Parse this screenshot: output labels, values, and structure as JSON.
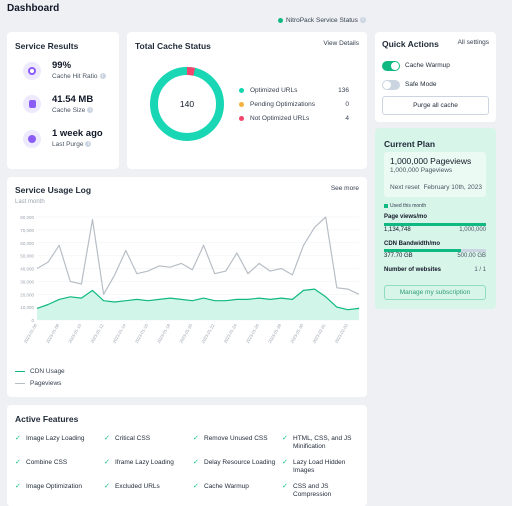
{
  "page": {
    "title": "Dashboard",
    "status_label": "NitroPack Service Status"
  },
  "service_results": {
    "title": "Service Results",
    "metrics": [
      {
        "value": "99%",
        "label": "Cache Hit Ratio"
      },
      {
        "value": "41.54 MB",
        "label": "Cache Size"
      },
      {
        "value": "1 week ago",
        "label": "Last Purge"
      }
    ]
  },
  "cache_status": {
    "title": "Total Cache Status",
    "link": "View Details",
    "total": "140",
    "legend": [
      {
        "label": "Optimized URLs",
        "value": "136",
        "color": "#10d6b0"
      },
      {
        "label": "Pending Optimizations",
        "value": "0",
        "color": "#f5b13d"
      },
      {
        "label": "Not Optimized URLs",
        "value": "4",
        "color": "#f4436c"
      }
    ]
  },
  "quick_actions": {
    "title": "Quick Actions",
    "link": "All settings",
    "toggles": [
      {
        "label": "Cache Warmup",
        "on": true
      },
      {
        "label": "Safe Mode",
        "on": false
      }
    ],
    "purge_label": "Purge all cache"
  },
  "current_plan": {
    "title": "Current Plan",
    "plan_name": "1,000,000 Pageviews",
    "plan_sub": "1,000,000 Pageviews",
    "next_reset_label": "Next reset",
    "next_reset_value": "February 10th, 2023",
    "used_label": "Used this month",
    "pageviews_label": "Page views/mo",
    "pageviews_used": "1,134,748",
    "pageviews_limit": "1,000,000",
    "pageviews_fraction": 1.0,
    "bandwidth_label": "CDN Bandwidth/mo",
    "bandwidth_used": "377.70 GB",
    "bandwidth_limit": "500.00 GB",
    "bandwidth_fraction": 0.755,
    "websites_label": "Number of websites",
    "websites_value": "1 / 1",
    "manage_label": "Manage my subscription"
  },
  "usage_log": {
    "title": "Service Usage Log",
    "link": "See more",
    "period": "Last month",
    "legend_cdn": "CDN Usage",
    "legend_pageviews": "Pageviews"
  },
  "chart_data": {
    "type": "area",
    "ylim": [
      0,
      80000
    ],
    "yticks": [
      "0",
      "10,000",
      "20,000",
      "30,000",
      "40,000",
      "50,000",
      "60,000",
      "70,000",
      "80,000"
    ],
    "x": [
      "2023-01-06",
      "2023-01-07",
      "2023-01-08",
      "2023-01-09",
      "2023-01-10",
      "2023-01-11",
      "2023-01-12",
      "2023-01-13",
      "2023-01-14",
      "2023-01-15",
      "2023-01-16",
      "2023-01-17",
      "2023-01-18",
      "2023-01-19",
      "2023-01-20",
      "2023-01-21",
      "2023-01-22",
      "2023-01-23",
      "2023-01-24",
      "2023-01-25",
      "2023-01-26",
      "2023-01-27",
      "2023-01-28",
      "2023-01-29",
      "2023-01-30",
      "2023-01-31",
      "2023-02-01",
      "2023-02-02",
      "2023-02-03",
      "2023-02-04"
    ],
    "xticks": [
      "2023-01-06",
      "2023-01-08",
      "2023-01-10",
      "2023-01-12",
      "2023-01-14",
      "2023-01-16",
      "2023-01-18",
      "2023-01-20",
      "2023-01-22",
      "2023-01-24",
      "2023-01-26",
      "2023-01-28",
      "2023-01-30",
      "2023-02-01",
      "2023-02-03"
    ],
    "series": [
      {
        "name": "CDN Usage",
        "color": "#10b981",
        "values": [
          9000,
          12000,
          16000,
          18000,
          17000,
          23000,
          15000,
          14000,
          15000,
          16000,
          15000,
          16000,
          17000,
          16000,
          15000,
          17000,
          15000,
          15000,
          16000,
          16000,
          17000,
          16000,
          17000,
          16000,
          23000,
          24000,
          18000,
          10000,
          8000,
          9000
        ]
      },
      {
        "name": "Pageviews",
        "color": "#b8bec6",
        "values": [
          40000,
          45000,
          58000,
          30000,
          28000,
          78000,
          20000,
          35000,
          54000,
          36000,
          38000,
          42000,
          41000,
          44000,
          39000,
          58000,
          36000,
          38000,
          52000,
          36000,
          44000,
          38000,
          40000,
          35000,
          58000,
          72000,
          86000,
          25000,
          24000,
          20000
        ]
      }
    ]
  },
  "features": {
    "title": "Active Features",
    "items": [
      "Image Lazy Loading",
      "Critical CSS",
      "Remove Unused CSS",
      "HTML, CSS, and JS Minification",
      "Combine CSS",
      "Iframe Lazy Loading",
      "Delay Resource Loading",
      "Lazy Load Hidden Images",
      "Image Optimization",
      "Excluded URLs",
      "Cache Warmup",
      "CSS and JS Compression"
    ]
  }
}
